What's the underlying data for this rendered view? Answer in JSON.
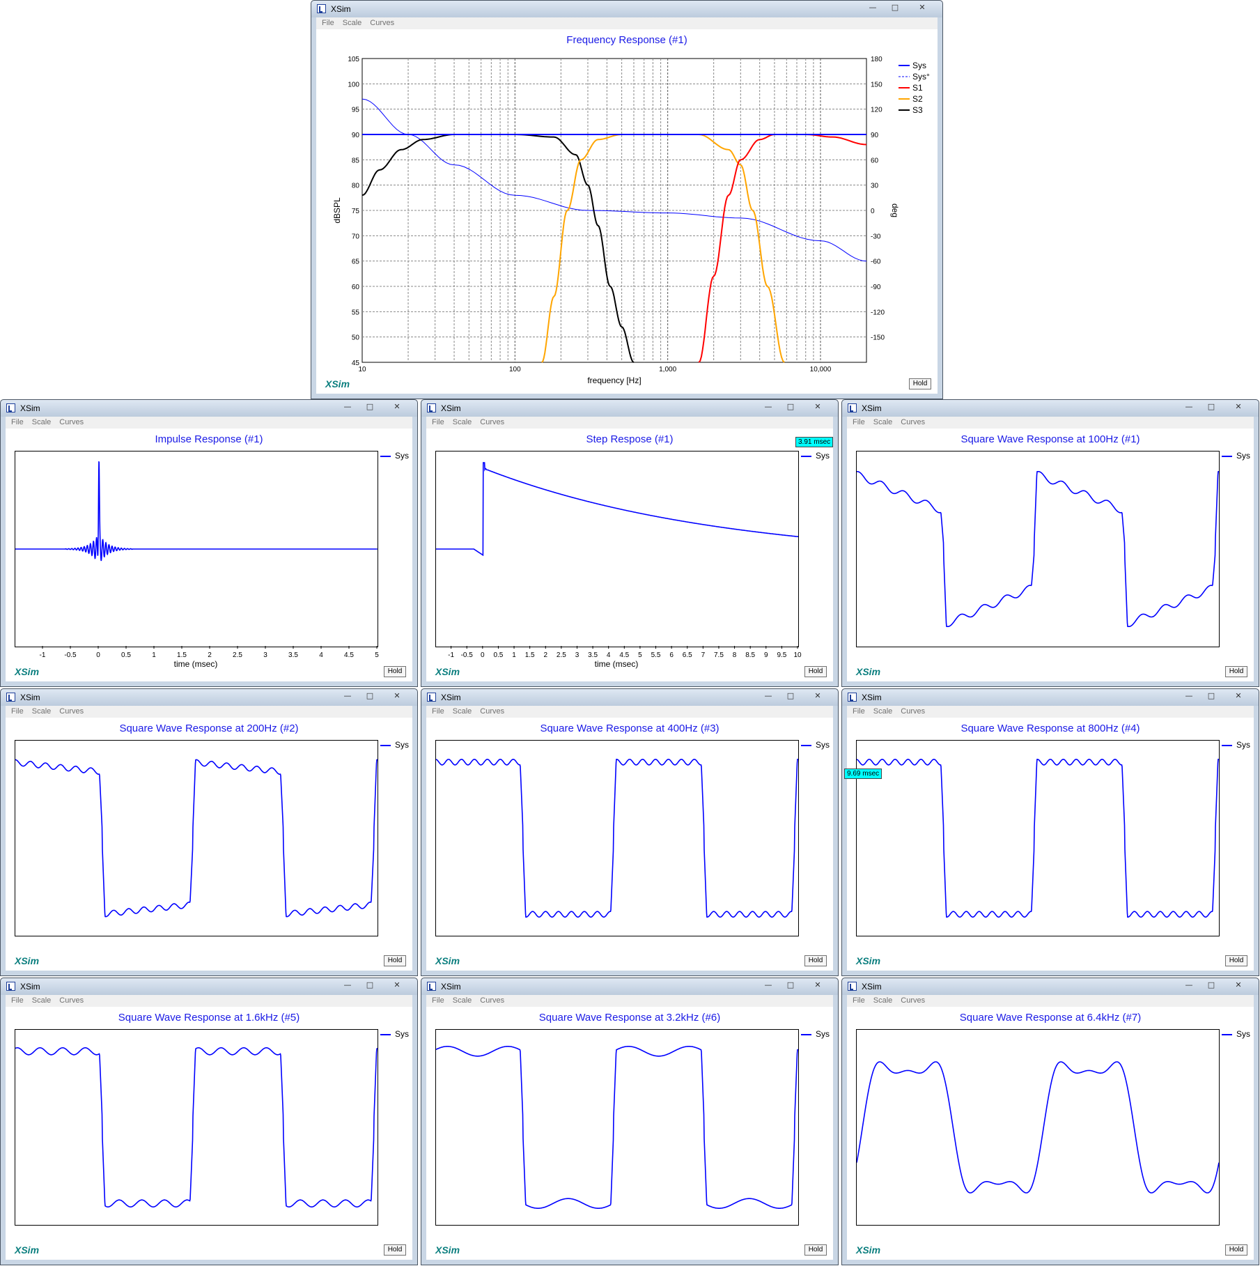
{
  "app": {
    "title": "XSim",
    "logo": "XSim",
    "hold_label": "Hold",
    "menus": [
      "File",
      "Scale",
      "Curves"
    ],
    "window_buttons": {
      "minimize": "—",
      "maximize": "□",
      "close": "✕"
    }
  },
  "colors": {
    "plot_title": "#1a1ae6",
    "sys": "#0000ff",
    "S1": "#ff0000",
    "S2": "#ffa500",
    "S3": "#000000",
    "marker": "#00ffff",
    "logo": "#0a7e7e"
  },
  "freq": {
    "title": "Frequency Response (#1)",
    "xlabel": "frequency [Hz]",
    "ylabel": "dBSPL",
    "y2label": "deg",
    "xticks": [
      "10",
      "100",
      "1,000",
      "10,000"
    ],
    "yticks": [
      "105",
      "100",
      "95",
      "90",
      "85",
      "80",
      "75",
      "70",
      "65",
      "60",
      "55",
      "50",
      "45"
    ],
    "y2ticks": [
      "180",
      "150",
      "120",
      "90",
      "60",
      "30",
      "0",
      "-30",
      "-60",
      "-90",
      "-120",
      "-150"
    ],
    "legend": [
      {
        "name": "Sys",
        "color": "#0000ff",
        "dash": false
      },
      {
        "name": "Sys°",
        "color": "#0000ff",
        "dash": true
      },
      {
        "name": "S1",
        "color": "#ff0000",
        "dash": false
      },
      {
        "name": "S2",
        "color": "#ffa500",
        "dash": false
      },
      {
        "name": "S3",
        "color": "#000000",
        "dash": false
      }
    ]
  },
  "impulse": {
    "title": "Impulse Response (#1)",
    "xlabel": "time (msec)",
    "xticks": [
      "-1",
      "-0.5",
      "0",
      "0.5",
      "1",
      "1.5",
      "2",
      "2.5",
      "3",
      "3.5",
      "4",
      "4.5",
      "5"
    ],
    "legend": "Sys"
  },
  "step": {
    "title": "Step Respose (#1)",
    "xlabel": "time (msec)",
    "marker": "3.91 msec",
    "xticks": [
      "-1",
      "-0.5",
      "0",
      "0.5",
      "1",
      "1.5",
      "2",
      "2.5",
      "3",
      "3.5",
      "4",
      "4.5",
      "5",
      "5.5",
      "6",
      "6.5",
      "7",
      "7.5",
      "8",
      "8.5",
      "9",
      "9.5",
      "10"
    ],
    "legend": "Sys"
  },
  "squares": [
    {
      "title": "Square Wave Response at 100Hz (#1)",
      "legend": "Sys",
      "marker": ""
    },
    {
      "title": "Square Wave Response at 200Hz (#2)",
      "legend": "Sys",
      "marker": ""
    },
    {
      "title": "Square Wave Response at 400Hz (#3)",
      "legend": "Sys",
      "marker": ""
    },
    {
      "title": "Square Wave Response at 800Hz (#4)",
      "legend": "Sys",
      "marker": "9.69 msec"
    },
    {
      "title": "Square Wave Response at 1.6kHz (#5)",
      "legend": "Sys",
      "marker": ""
    },
    {
      "title": "Square Wave Response at 3.2kHz (#6)",
      "legend": "Sys",
      "marker": ""
    },
    {
      "title": "Square Wave Response at 6.4kHz (#7)",
      "legend": "Sys",
      "marker": ""
    }
  ],
  "chart_data": [
    {
      "type": "line",
      "title": "Frequency Response (#1)",
      "xlabel": "frequency [Hz]",
      "ylabel": "dBSPL",
      "y2label": "deg",
      "xscale": "log",
      "xlim": [
        10,
        20000
      ],
      "ylim": [
        45,
        105
      ],
      "y2lim": [
        -180,
        180
      ],
      "grid": true,
      "legend": "top-right",
      "series": [
        {
          "name": "Sys",
          "x": [
            10,
            200,
            1000,
            5000,
            20000
          ],
          "y": [
            90,
            90,
            90,
            90,
            90
          ]
        },
        {
          "name": "Sys°",
          "x": [
            10,
            20,
            40,
            100,
            300,
            1000,
            3000,
            10000,
            20000
          ],
          "y": [
            97,
            90,
            84,
            78,
            75,
            74.5,
            73.5,
            69,
            65
          ]
        },
        {
          "name": "S1",
          "x": [
            1600,
            2000,
            2500,
            3000,
            4000,
            5000,
            8000,
            12000,
            20000
          ],
          "y": [
            45,
            62,
            78,
            85,
            89,
            90,
            90,
            89.5,
            88
          ]
        },
        {
          "name": "S2",
          "x": [
            150,
            180,
            220,
            270,
            350,
            500,
            1000,
            1600,
            2500,
            3000,
            3600,
            4500,
            5800
          ],
          "y": [
            45,
            58,
            75,
            85,
            89,
            90,
            90,
            90,
            87,
            84,
            75,
            60,
            45
          ]
        },
        {
          "name": "S3",
          "x": [
            10,
            13,
            18,
            25,
            40,
            100,
            180,
            250,
            300,
            350,
            420,
            500,
            600
          ],
          "y": [
            78,
            83,
            87,
            89,
            90,
            90,
            89.5,
            86,
            80,
            72,
            60,
            52,
            45
          ]
        }
      ]
    },
    {
      "type": "line",
      "title": "Impulse Response (#1)",
      "xlabel": "time (msec)",
      "xlim": [
        -1.5,
        5
      ],
      "series": [
        {
          "name": "Sys",
          "x": [
            -1.5,
            -0.3,
            0,
            0.3,
            5
          ],
          "y": [
            0,
            0,
            1,
            0,
            0
          ]
        }
      ]
    },
    {
      "type": "line",
      "title": "Step Respose (#1)",
      "xlabel": "time (msec)",
      "xlim": [
        -1.5,
        10
      ],
      "series": [
        {
          "name": "Sys",
          "x": [
            -1.5,
            -0.05,
            0,
            0.1,
            1,
            3,
            5,
            7,
            10
          ],
          "y": [
            0,
            -0.05,
            1,
            0.98,
            0.93,
            0.74,
            0.56,
            0.42,
            0.23
          ]
        }
      ]
    },
    {
      "type": "line",
      "title": "Square Wave Response at 100Hz (#1)",
      "series": [
        {
          "name": "Sys"
        }
      ]
    },
    {
      "type": "line",
      "title": "Square Wave Response at 200Hz (#2)",
      "series": [
        {
          "name": "Sys"
        }
      ]
    },
    {
      "type": "line",
      "title": "Square Wave Response at 400Hz (#3)",
      "series": [
        {
          "name": "Sys"
        }
      ]
    },
    {
      "type": "line",
      "title": "Square Wave Response at 800Hz (#4)",
      "series": [
        {
          "name": "Sys"
        }
      ]
    },
    {
      "type": "line",
      "title": "Square Wave Response at 1.6kHz (#5)",
      "series": [
        {
          "name": "Sys"
        }
      ]
    },
    {
      "type": "line",
      "title": "Square Wave Response at 3.2kHz (#6)",
      "series": [
        {
          "name": "Sys"
        }
      ]
    },
    {
      "type": "line",
      "title": "Square Wave Response at 6.4kHz (#7)",
      "series": [
        {
          "name": "Sys"
        }
      ]
    }
  ]
}
